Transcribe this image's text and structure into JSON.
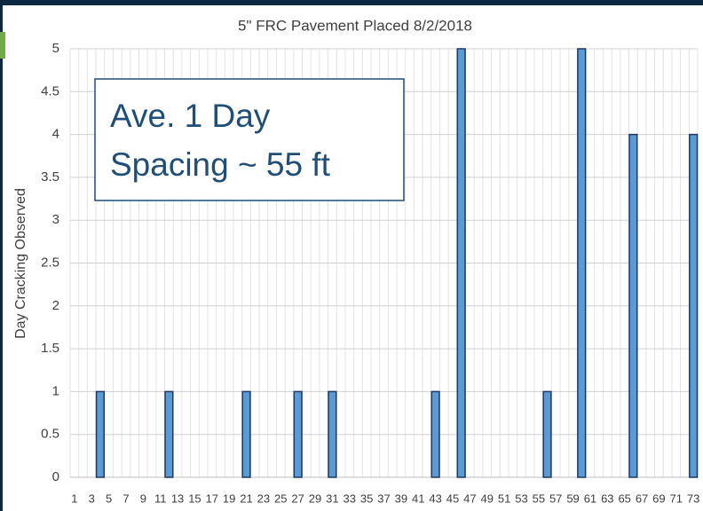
{
  "chart_data": {
    "type": "bar",
    "title": "5\" FRC Pavement Placed 8/2/2018",
    "y_label": "Day Cracking Observed",
    "annotation": [
      "Ave. 1 Day",
      "Spacing ~ 55 ft"
    ],
    "categories": [
      1,
      null,
      3,
      null,
      5,
      null,
      7,
      null,
      9,
      null,
      11,
      null,
      13,
      null,
      15,
      null,
      17,
      null,
      19,
      null,
      21,
      null,
      23,
      null,
      25,
      null,
      27,
      null,
      29,
      null,
      31,
      null,
      33,
      null,
      35,
      null,
      37,
      null,
      39,
      null,
      41,
      null,
      43,
      null,
      45,
      null,
      47,
      null,
      49,
      null,
      51,
      null,
      53,
      null,
      55,
      null,
      57,
      null,
      59,
      null,
      61,
      null,
      63,
      null,
      65,
      null,
      67,
      null,
      69,
      null,
      71,
      null,
      73
    ],
    "values": [
      0,
      0,
      0,
      1,
      0,
      0,
      0,
      0,
      0,
      0,
      0,
      1,
      0,
      0,
      0,
      0,
      0,
      0,
      0,
      0,
      1,
      0,
      0,
      0,
      0,
      0,
      1,
      0,
      0,
      0,
      1,
      0,
      0,
      0,
      0,
      0,
      0,
      0,
      0,
      0,
      0,
      0,
      1,
      0,
      0,
      5,
      0,
      0,
      0,
      0,
      0,
      0,
      0,
      0,
      0,
      1,
      0,
      0,
      0,
      5,
      0,
      0,
      0,
      0,
      0,
      4,
      0,
      0,
      0,
      0,
      0,
      0,
      4
    ],
    "color": "#5b9bd5",
    "ylim": [
      0,
      5
    ],
    "yticks": [
      0,
      0.5,
      1,
      1.5,
      2,
      2.5,
      3,
      3.5,
      4,
      4.5,
      5
    ],
    "grid": true
  }
}
